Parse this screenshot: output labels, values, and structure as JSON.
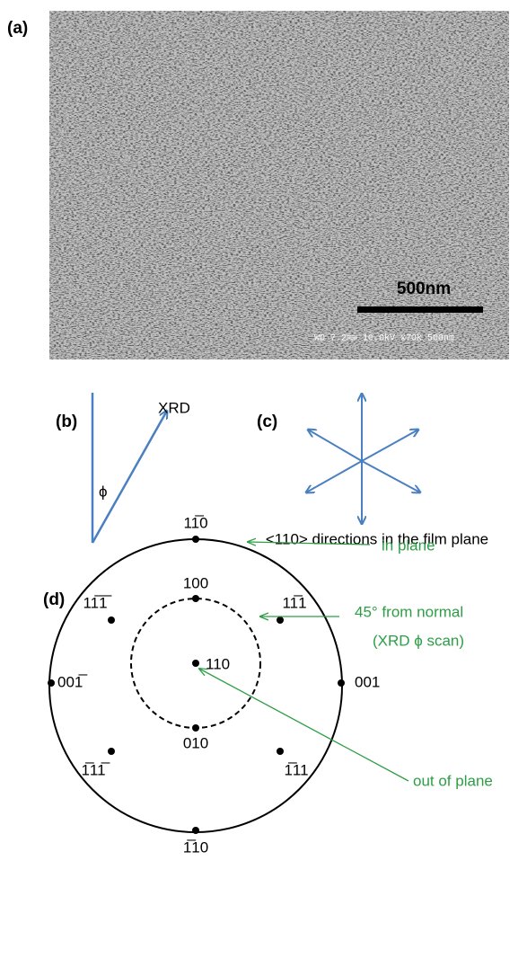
{
  "panel_a": {
    "label": "(a)",
    "scale_bar": "500nm",
    "info": "WD 7.2mm 10.0kV x70k 500nm"
  },
  "panel_b": {
    "label": "(b)",
    "beam": "XRD",
    "angle": "ϕ"
  },
  "panel_c": {
    "label": "(c)",
    "caption": "<110> directions in the film plane"
  },
  "panel_d": {
    "label": "(d)",
    "poles": {
      "top": "11̅0",
      "top_left": "11̅1̅",
      "top_right": "11̅1",
      "left": "001̅",
      "right": "001",
      "center": "110",
      "inner_top": "100",
      "inner_bottom": "010",
      "bottom_left": "1̅11̅",
      "bottom_right": "1̅11",
      "bottom": "1̅10"
    },
    "annotations": {
      "in_plane": "in plane",
      "from_normal": "45° from normal",
      "phi_scan": "(XRD ϕ scan)",
      "out_of_plane": "out of plane"
    }
  }
}
